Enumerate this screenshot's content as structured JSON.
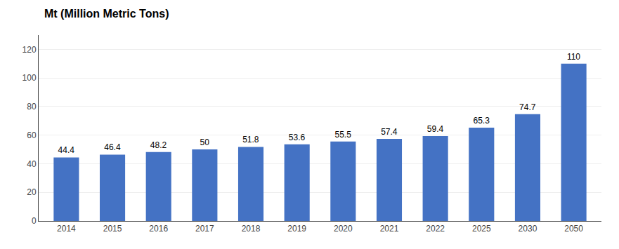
{
  "chart_data": {
    "type": "bar",
    "ylabel": "Mt (Million Metric Tons)",
    "categories": [
      "2014",
      "2015",
      "2016",
      "2017",
      "2018",
      "2019",
      "2020",
      "2021",
      "2022",
      "2025",
      "2030",
      "2050"
    ],
    "values": [
      44.4,
      46.4,
      48.2,
      50,
      51.8,
      53.6,
      55.5,
      57.4,
      59.4,
      65.3,
      74.7,
      110
    ],
    "color": "#4472C4",
    "ylim": [
      0,
      130
    ],
    "yticks": [
      0,
      20,
      40,
      60,
      80,
      100,
      120
    ],
    "grid": true,
    "data_labels": true
  }
}
